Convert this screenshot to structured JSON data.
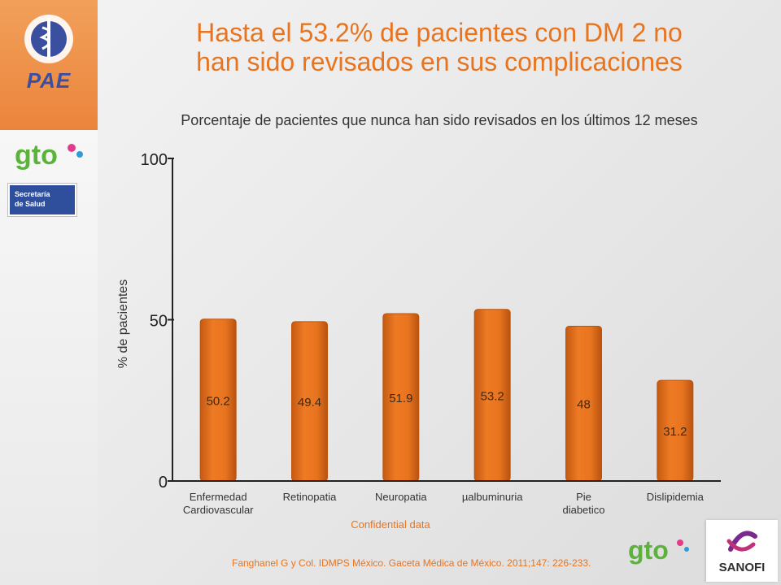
{
  "slide": {
    "title_line1": "Hasta el 53.2% de pacientes con DM 2 no",
    "title_line2": "han sido revisados en sus complicaciones",
    "confidential": "Confidential data",
    "citation": "Fanghanel G y Col. IDMPS México. Gaceta Médica de México. 2011;147: 226-233."
  },
  "logos": {
    "pae": "PAE",
    "gto": "gto",
    "secretaria_line1": "Secretaría",
    "secretaria_line2": "de Salud",
    "sanofi": "SANOFI"
  },
  "colors": {
    "bar": "#e8741f",
    "bar_dark": "#b9530f",
    "accent": "#e8741f",
    "axis": "#222222"
  },
  "chart_data": {
    "type": "bar",
    "title": "Porcentaje de pacientes que nunca han sido revisados en los últimos 12 meses",
    "categories": [
      [
        "Enfermedad",
        "Cardiovascular"
      ],
      [
        "Retinopatia"
      ],
      [
        "Neuropatia"
      ],
      [
        "µalbuminuria"
      ],
      [
        "Pie",
        "diabetico"
      ],
      [
        "Dislipidemia"
      ]
    ],
    "values": [
      50.2,
      49.4,
      51.9,
      53.2,
      48,
      31.2
    ],
    "value_labels": [
      "50.2",
      "49.4",
      "51.9",
      "53.2",
      "48",
      "31.2"
    ],
    "ylabel": "% de pacientes",
    "xlabel": "",
    "ylim": [
      0,
      100
    ],
    "yticks": [
      0,
      50,
      100
    ],
    "grid": false
  }
}
